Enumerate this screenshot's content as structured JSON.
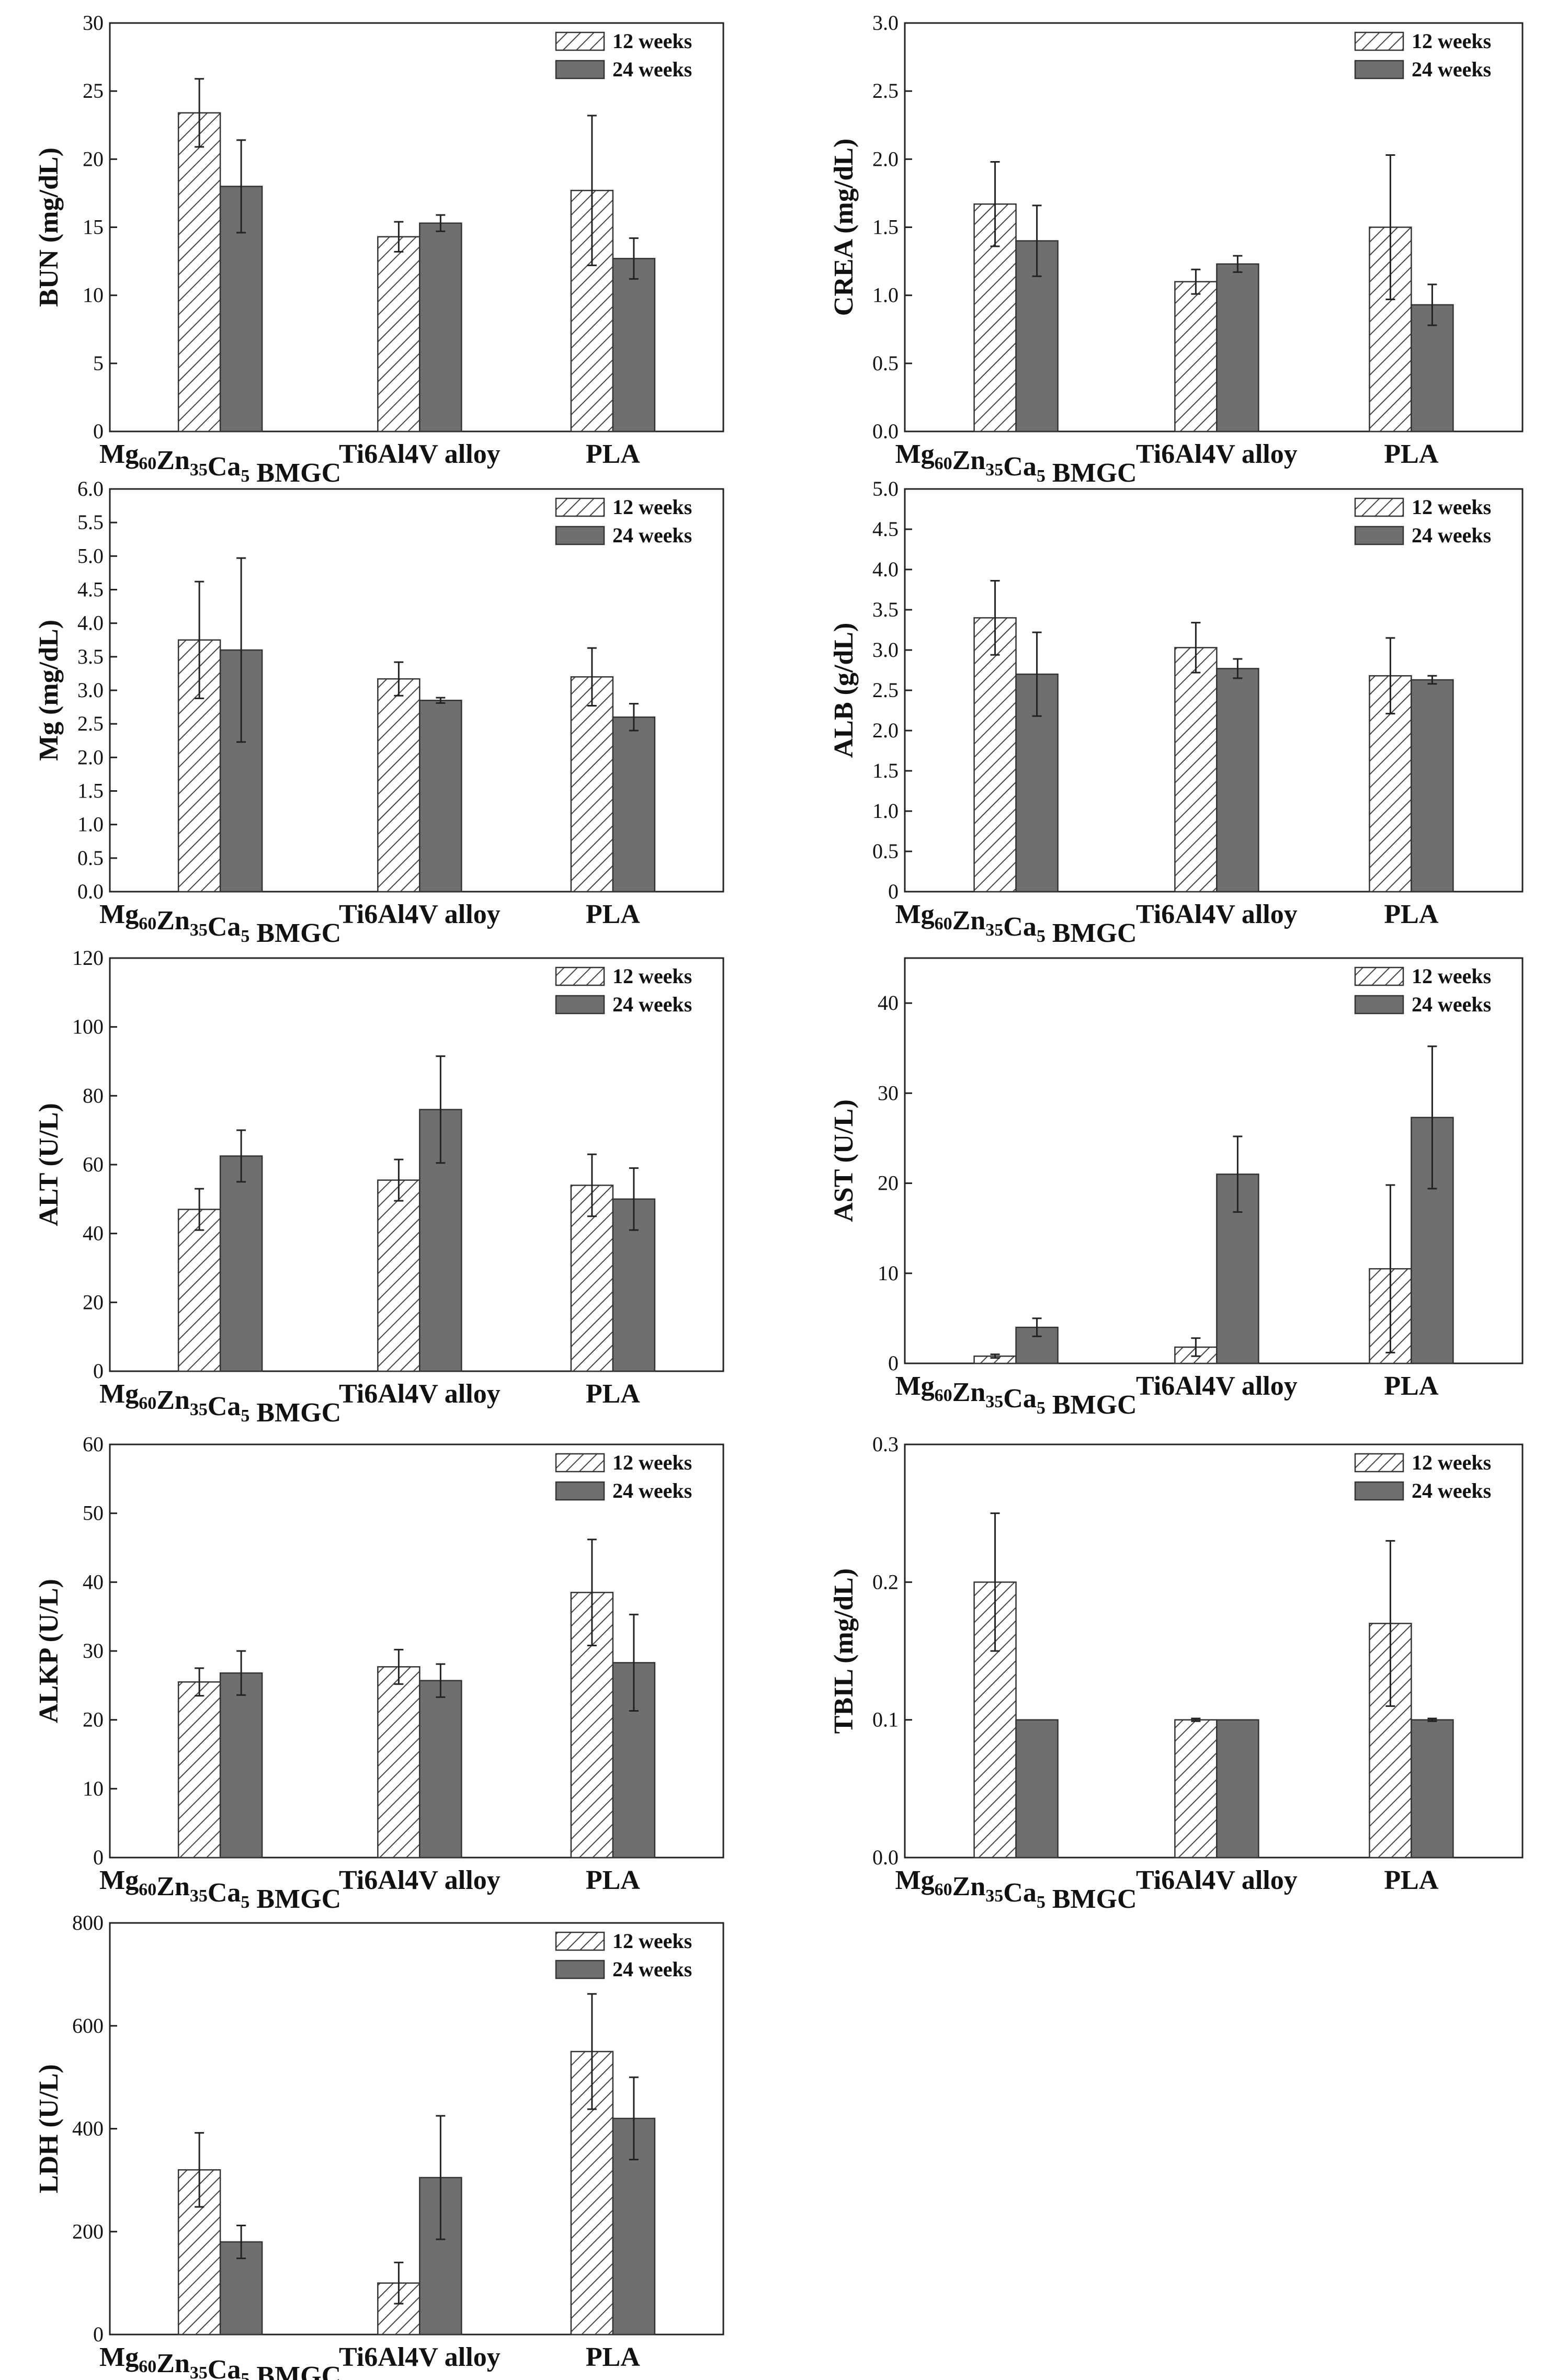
{
  "colors": {
    "series_fill_24": "#6f6f6f",
    "axis": "#222222",
    "hatch": "#444444",
    "bar_outline": "#333333"
  },
  "categories": [
    {
      "pre": "Mg",
      "s1": "60",
      "m1": "Zn",
      "s2": "35",
      "m2": "Ca",
      "s3": "5",
      "post": " BMGC"
    },
    {
      "pre": "Ti6Al4V alloy"
    },
    {
      "pre": "PLA"
    }
  ],
  "chart_data": [
    {
      "type": "bar",
      "ylabel": "BUN (mg/dL)",
      "ylim": [
        0,
        30
      ],
      "yticks": [
        "0",
        "5",
        "10",
        "15",
        "20",
        "25",
        "30"
      ],
      "categories": [
        "Mg60Zn35Ca5 BMGC",
        "Ti6Al4V alloy",
        "PLA"
      ],
      "series": [
        {
          "name": "12 weeks",
          "values": [
            23.4,
            14.3,
            17.7
          ],
          "errors": [
            2.5,
            1.1,
            5.5
          ]
        },
        {
          "name": "24 weeks",
          "values": [
            18.0,
            15.3,
            12.7
          ],
          "errors": [
            3.4,
            0.6,
            1.5
          ]
        }
      ]
    },
    {
      "type": "bar",
      "ylabel": "CREA (mg/dL)",
      "ylim": [
        0,
        3.0
      ],
      "yticks": [
        "0.0",
        "0.5",
        "1.0",
        "1.5",
        "2.0",
        "2.5",
        "3.0"
      ],
      "categories": [
        "Mg60Zn35Ca5 BMGC",
        "Ti6Al4V alloy",
        "PLA"
      ],
      "series": [
        {
          "name": "12 weeks",
          "values": [
            1.67,
            1.1,
            1.5
          ],
          "errors": [
            0.31,
            0.09,
            0.53
          ]
        },
        {
          "name": "24 weeks",
          "values": [
            1.4,
            1.23,
            0.93
          ],
          "errors": [
            0.26,
            0.06,
            0.15
          ]
        }
      ]
    },
    {
      "type": "bar",
      "ylabel": "Mg (mg/dL)",
      "ylim": [
        0,
        6.0
      ],
      "yticks": [
        "0.0",
        "0.5",
        "1.0",
        "1.5",
        "2.0",
        "2.5",
        "3.0",
        "3.5",
        "4.0",
        "4.5",
        "5.0",
        "5.5",
        "6.0"
      ],
      "categories": [
        "Mg60Zn35Ca5 BMGC",
        "Ti6Al4V alloy",
        "PLA"
      ],
      "series": [
        {
          "name": "12 weeks",
          "values": [
            3.75,
            3.17,
            3.2
          ],
          "errors": [
            0.87,
            0.25,
            0.43
          ]
        },
        {
          "name": "24 weeks",
          "values": [
            3.6,
            2.85,
            2.6
          ],
          "errors": [
            1.37,
            0.04,
            0.2
          ]
        }
      ]
    },
    {
      "type": "bar",
      "ylabel": "ALB (g/dL)",
      "ylim": [
        0,
        5.0
      ],
      "yticks": [
        "0",
        "0.5",
        "1.0",
        "1.5",
        "2.0",
        "2.5",
        "3.0",
        "3.5",
        "4.0",
        "4.5",
        "5.0"
      ],
      "categories": [
        "Mg60Zn35Ca5 BMGC",
        "Ti6Al4V alloy",
        "PLA"
      ],
      "series": [
        {
          "name": "12 weeks",
          "values": [
            3.4,
            3.03,
            2.68
          ],
          "errors": [
            0.46,
            0.31,
            0.47
          ]
        },
        {
          "name": "24 weeks",
          "values": [
            2.7,
            2.77,
            2.63
          ],
          "errors": [
            0.52,
            0.12,
            0.05
          ]
        }
      ]
    },
    {
      "type": "bar",
      "ylabel": "ALT (U/L)",
      "ylim": [
        0,
        120
      ],
      "yticks": [
        "0",
        "20",
        "40",
        "60",
        "80",
        "100",
        "120"
      ],
      "categories": [
        "Mg60Zn35Ca5 BMGC",
        "Ti6Al4V alloy",
        "PLA"
      ],
      "series": [
        {
          "name": "12 weeks",
          "values": [
            47,
            55.5,
            54
          ],
          "errors": [
            6,
            6,
            9
          ]
        },
        {
          "name": "24 weeks",
          "values": [
            62.5,
            76,
            50
          ],
          "errors": [
            7.5,
            15.5,
            9
          ]
        }
      ]
    },
    {
      "type": "bar",
      "ylabel": "AST (U/L)",
      "ylim": [
        0,
        45
      ],
      "yticks": [
        "0",
        "10",
        "20",
        "30",
        "40"
      ],
      "categories": [
        "Mg60Zn35Ca5 BMGC",
        "Ti6Al4V alloy",
        "PLA"
      ],
      "series": [
        {
          "name": "12 weeks",
          "values": [
            0.8,
            1.8,
            10.5
          ],
          "errors": [
            0.2,
            1.0,
            9.3
          ]
        },
        {
          "name": "24 weeks",
          "values": [
            4.0,
            21,
            27.3
          ],
          "errors": [
            1.0,
            4.2,
            7.9
          ]
        }
      ]
    },
    {
      "type": "bar",
      "ylabel": "ALKP (U/L)",
      "ylim": [
        0,
        60
      ],
      "yticks": [
        "0",
        "10",
        "20",
        "30",
        "40",
        "50",
        "60"
      ],
      "categories": [
        "Mg60Zn35Ca5 BMGC",
        "Ti6Al4V alloy",
        "PLA"
      ],
      "series": [
        {
          "name": "12 weeks",
          "values": [
            25.5,
            27.7,
            38.5
          ],
          "errors": [
            2.0,
            2.5,
            7.7
          ]
        },
        {
          "name": "24 weeks",
          "values": [
            26.8,
            25.7,
            28.3
          ],
          "errors": [
            3.2,
            2.4,
            7.0
          ]
        }
      ]
    },
    {
      "type": "bar",
      "ylabel": "TBIL (mg/dL)",
      "ylim": [
        0,
        0.3
      ],
      "yticks": [
        "0.0",
        "0.1",
        "0.2",
        "0.3"
      ],
      "categories": [
        "Mg60Zn35Ca5 BMGC",
        "Ti6Al4V alloy",
        "PLA"
      ],
      "series": [
        {
          "name": "12 weeks",
          "values": [
            0.2,
            0.1,
            0.17
          ],
          "errors": [
            0.05,
            0.001,
            0.06
          ]
        },
        {
          "name": "24 weeks",
          "values": [
            0.1,
            0.1,
            0.1
          ],
          "errors": [
            0,
            0,
            0.001
          ]
        }
      ]
    },
    {
      "type": "bar",
      "ylabel": "LDH (U/L)",
      "ylim": [
        0,
        800
      ],
      "yticks": [
        "0",
        "200",
        "400",
        "600",
        "800"
      ],
      "categories": [
        "Mg60Zn35Ca5 BMGC",
        "Ti6Al4V alloy",
        "PLA"
      ],
      "series": [
        {
          "name": "12 weeks",
          "values": [
            320,
            100,
            550
          ],
          "errors": [
            72,
            40,
            112
          ]
        },
        {
          "name": "24 weeks",
          "values": [
            180,
            305,
            420
          ],
          "errors": [
            32,
            120,
            80
          ]
        }
      ]
    }
  ]
}
